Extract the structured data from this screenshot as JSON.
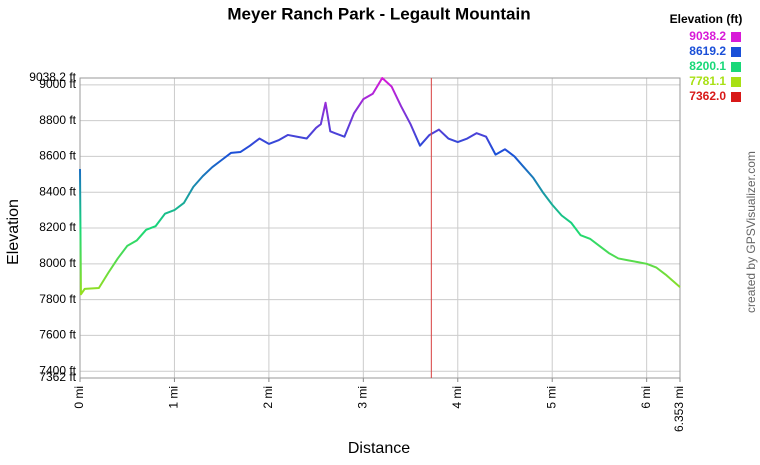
{
  "chart_data": {
    "type": "line",
    "title": "Meyer Ranch Park - Legault Mountain",
    "x_label": "Distance",
    "y_label": "Elevation",
    "credit": "created by GPSVisualizer.com",
    "xlim": [
      0,
      6.353
    ],
    "ylim": [
      7362,
      9038.2
    ],
    "xticks": [
      {
        "value": 0,
        "label": "0 mi"
      },
      {
        "value": 1,
        "label": "1 mi"
      },
      {
        "value": 2,
        "label": "2 mi"
      },
      {
        "value": 3,
        "label": "3 mi"
      },
      {
        "value": 4,
        "label": "4 mi"
      },
      {
        "value": 5,
        "label": "5 mi"
      },
      {
        "value": 6,
        "label": "6 mi"
      },
      {
        "value": 6.353,
        "label": "6.353 mi"
      }
    ],
    "yticks": [
      {
        "value": 7362,
        "label": "7362 ft"
      },
      {
        "value": 7400,
        "label": "7400 ft"
      },
      {
        "value": 7600,
        "label": "7600 ft"
      },
      {
        "value": 7800,
        "label": "7800 ft"
      },
      {
        "value": 8000,
        "label": "8000 ft"
      },
      {
        "value": 8200,
        "label": "8200 ft"
      },
      {
        "value": 8400,
        "label": "8400 ft"
      },
      {
        "value": 8600,
        "label": "8600 ft"
      },
      {
        "value": 8800,
        "label": "8800 ft"
      },
      {
        "value": 9000,
        "label": "9000 ft"
      },
      {
        "value": 9038.2,
        "label": "9038.2 ft"
      }
    ],
    "grid": true,
    "legend_title": "Elevation (ft)",
    "color_scale": [
      {
        "value": 9038.2,
        "color": "#d81ad8"
      },
      {
        "value": 8619.2,
        "color": "#1a4fd8"
      },
      {
        "value": 8200.1,
        "color": "#18d878"
      },
      {
        "value": 7781.1,
        "color": "#a8e014"
      },
      {
        "value": 7362.0,
        "label": "7362.0",
        "color": "#d81818"
      }
    ],
    "marker_x": 3.72,
    "marker_color": "#d84040",
    "x": [
      0,
      0.01,
      0.05,
      0.2,
      0.3,
      0.4,
      0.5,
      0.6,
      0.7,
      0.8,
      0.9,
      1.0,
      1.1,
      1.2,
      1.3,
      1.4,
      1.5,
      1.6,
      1.7,
      1.8,
      1.9,
      2.0,
      2.1,
      2.2,
      2.3,
      2.4,
      2.5,
      2.55,
      2.6,
      2.65,
      2.7,
      2.8,
      2.9,
      3.0,
      3.1,
      3.2,
      3.3,
      3.4,
      3.5,
      3.6,
      3.7,
      3.8,
      3.9,
      4.0,
      4.1,
      4.2,
      4.3,
      4.4,
      4.5,
      4.6,
      4.7,
      4.8,
      4.9,
      5.0,
      5.1,
      5.2,
      5.3,
      5.4,
      5.5,
      5.6,
      5.7,
      5.8,
      5.9,
      6.0,
      6.1,
      6.2,
      6.353
    ],
    "values": [
      8530,
      7830,
      7860,
      7865,
      7950,
      8030,
      8100,
      8130,
      8190,
      8210,
      8280,
      8300,
      8340,
      8430,
      8490,
      8540,
      8580,
      8620,
      8625,
      8660,
      8700,
      8670,
      8690,
      8720,
      8710,
      8700,
      8760,
      8780,
      8900,
      8740,
      8730,
      8710,
      8840,
      8920,
      8950,
      9038.2,
      8990,
      8880,
      8780,
      8660,
      8720,
      8750,
      8700,
      8680,
      8700,
      8730,
      8710,
      8610,
      8640,
      8600,
      8540,
      8480,
      8400,
      8330,
      8270,
      8230,
      8160,
      8140,
      8100,
      8060,
      8030,
      8020,
      8010,
      8000,
      7980,
      7940,
      7870
    ]
  }
}
